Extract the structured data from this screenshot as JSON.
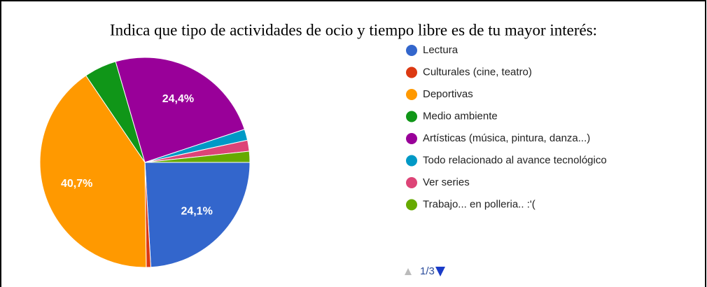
{
  "chart_data": {
    "type": "pie",
    "title": "Indica que tipo de actividades de ocio y tiempo libre es de tu mayor interés:",
    "categories": [
      "Lectura",
      "Culturales (cine, teatro)",
      "Deportivas",
      "Medio ambiente",
      "Artísticas (música, pintura, danza...)",
      "Todo relacionado al avance tecnológico",
      "Ver series",
      "Trabajo... en polleria.. :'("
    ],
    "values": [
      24.1,
      0.7,
      40.7,
      5,
      24.4,
      1.7,
      1.7,
      1.7
    ],
    "value_labels": [
      "24,1%",
      null,
      "40,7%",
      null,
      "24,4%",
      null,
      null,
      null
    ],
    "colors": [
      "#3366cc",
      "#dc3912",
      "#ff9900",
      "#109618",
      "#990099",
      "#0099c6",
      "#dd4477",
      "#66aa00"
    ],
    "legend_page": "1/3"
  }
}
